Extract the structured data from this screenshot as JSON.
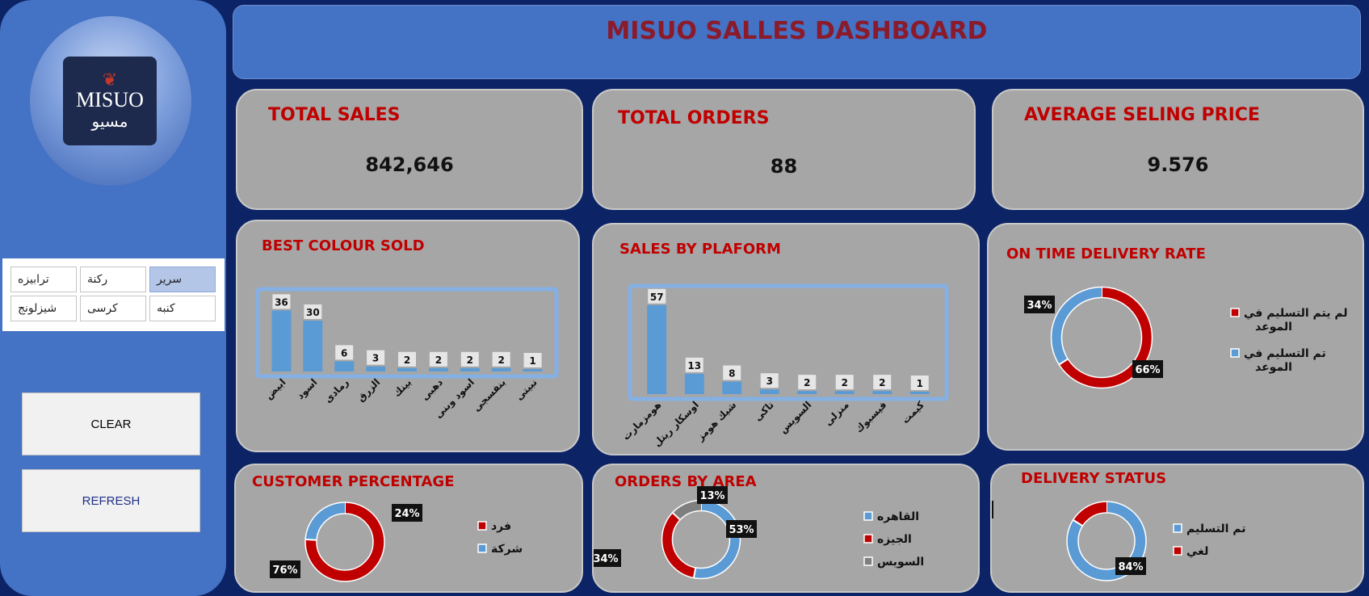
{
  "header": {
    "title": "MISUO SALLES DASHBOARD"
  },
  "logo": {
    "latin": "MISUO",
    "arabic": "مسيو"
  },
  "slicer": {
    "items": [
      {
        "label": "ترابيزه",
        "selected": false
      },
      {
        "label": "ركنة",
        "selected": false
      },
      {
        "label": "سرير",
        "selected": true
      },
      {
        "label": "شيزلونج",
        "selected": false
      },
      {
        "label": "كرسى",
        "selected": false
      },
      {
        "label": "كنبه",
        "selected": false
      }
    ]
  },
  "buttons": {
    "clear": "CLEAR",
    "refresh": "REFRESH"
  },
  "kpis": {
    "total_sales": {
      "title": "TOTAL SALES",
      "value": "842,646"
    },
    "total_orders": {
      "title": "TOTAL ORDERS",
      "value": "88"
    },
    "avg_price": {
      "title": "AVERAGE SELING PRICE",
      "value": "9.576"
    }
  },
  "colors": {
    "blue": "#5b9bd5",
    "red": "#c00000",
    "gray": "#7f7f7f",
    "card": "#a6a6a6"
  },
  "chart_data": [
    {
      "id": "colour",
      "type": "bar",
      "title": "BEST COLOUR SOLD",
      "categories": [
        "ابيض",
        "اسود",
        "رمادى",
        "الزرق",
        "بينك",
        "دهبى",
        "اسود وبنى",
        "بنفسجى",
        "نبيتى"
      ],
      "values": [
        36,
        30,
        6,
        3,
        2,
        2,
        2,
        2,
        1
      ],
      "ylim": [
        0,
        40
      ]
    },
    {
      "id": "platform",
      "type": "bar",
      "title": "SALES BY PLAFORM",
      "categories": [
        "هومزمارت",
        "اوسكار ريتل",
        "شيك هومز",
        "تاكى",
        "السويس",
        "منزلى",
        "فيسبوك",
        "كيمت"
      ],
      "values": [
        57,
        13,
        8,
        3,
        2,
        2,
        2,
        1
      ],
      "ylim": [
        0,
        60
      ]
    },
    {
      "id": "ontime",
      "type": "pie",
      "title": "ON TIME DELIVERY RATE",
      "labels": [
        "لم يتم التسليم في الموعد",
        "تم التسليم في الموعد"
      ],
      "values": [
        66,
        34
      ],
      "display": [
        "66%",
        "34%"
      ],
      "colors": [
        "#c00000",
        "#5b9bd5"
      ]
    },
    {
      "id": "customer",
      "type": "pie",
      "title": "CUSTOMER PERCENTAGE",
      "labels": [
        "فرد",
        "شركة"
      ],
      "values": [
        76,
        24
      ],
      "display": [
        "76%",
        "24%"
      ],
      "colors": [
        "#c00000",
        "#5b9bd5"
      ]
    },
    {
      "id": "area",
      "type": "pie",
      "title": "ORDERS BY AREA",
      "labels": [
        "القاهره",
        "الجيزه",
        "السويس"
      ],
      "values": [
        53,
        34,
        13
      ],
      "display": [
        "53%",
        "34%",
        "13%"
      ],
      "colors": [
        "#5b9bd5",
        "#c00000",
        "#7f7f7f"
      ]
    },
    {
      "id": "status",
      "type": "pie",
      "title": "DELIVERY STATUS",
      "labels": [
        "تم التسليم",
        "لغي"
      ],
      "values": [
        84,
        16
      ],
      "display": [
        "84%",
        "16%"
      ],
      "colors": [
        "#5b9bd5",
        "#c00000"
      ]
    }
  ]
}
